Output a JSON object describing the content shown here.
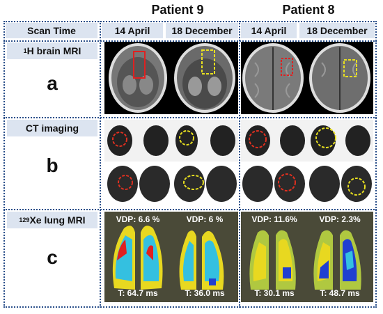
{
  "patients": [
    "Patient 9",
    "Patient 8"
  ],
  "scan_time_label": "Scan Time",
  "dates": [
    "14 April",
    "18 December",
    "14 April",
    "18 December"
  ],
  "rows": [
    {
      "label_pre": "1",
      "label": "H brain MRI",
      "letter": "a"
    },
    {
      "label_pre": "",
      "label": "CT imaging",
      "letter": "b"
    },
    {
      "label_pre": "129",
      "label": "Xe lung MRI",
      "letter": "c"
    }
  ],
  "xe": [
    {
      "vdp": "VDP: 6.6 %",
      "t": "T: 64.7 ms"
    },
    {
      "vdp": "VDP: 6 %",
      "t": "T: 36.0 ms"
    },
    {
      "vdp": "VDP: 11.6%",
      "t": "T: 30.1 ms"
    },
    {
      "vdp": "VDP: 2.3%",
      "t": "T: 48.7 ms"
    }
  ],
  "colors": {
    "brain_roi_1": "#e02020",
    "brain_roi_2": "#e8e020",
    "ct_roi_1": "#e03020",
    "ct_roi_2": "#e8e020",
    "frame": "#2a4f8a",
    "label_bg": "#dce4f0"
  }
}
